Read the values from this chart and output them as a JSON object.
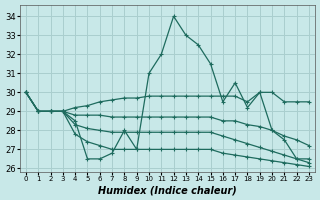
{
  "xlabel": "Humidex (Indice chaleur)",
  "x": [
    0,
    1,
    2,
    3,
    4,
    5,
    6,
    7,
    8,
    9,
    10,
    11,
    12,
    13,
    14,
    15,
    16,
    17,
    18,
    19,
    20,
    21,
    22,
    23
  ],
  "series": [
    [
      30,
      29,
      29,
      29,
      28.5,
      26.5,
      26.5,
      26.8,
      28.0,
      27.0,
      31,
      32,
      34,
      33,
      32.5,
      31.5,
      29.5,
      30.5,
      29.2,
      30,
      28,
      27.5,
      26.5,
      26.5
    ],
    [
      30,
      29,
      29,
      29,
      29.2,
      29.3,
      29.5,
      29.6,
      29.7,
      29.7,
      29.8,
      29.8,
      29.8,
      29.8,
      29.8,
      29.8,
      29.8,
      29.8,
      29.5,
      30.0,
      30.0,
      29.5,
      29.5,
      29.5
    ],
    [
      30,
      29,
      29,
      29,
      28.8,
      28.8,
      28.8,
      28.7,
      28.7,
      28.7,
      28.7,
      28.7,
      28.7,
      28.7,
      28.7,
      28.7,
      28.5,
      28.5,
      28.3,
      28.2,
      28.0,
      27.7,
      27.5,
      27.2
    ],
    [
      30,
      29,
      29,
      29,
      28.3,
      28.1,
      28.0,
      27.9,
      27.9,
      27.9,
      27.9,
      27.9,
      27.9,
      27.9,
      27.9,
      27.9,
      27.7,
      27.5,
      27.3,
      27.1,
      26.9,
      26.7,
      26.5,
      26.3
    ],
    [
      30,
      29,
      29,
      29,
      27.8,
      27.4,
      27.2,
      27.0,
      27.0,
      27.0,
      27.0,
      27.0,
      27.0,
      27.0,
      27.0,
      27.0,
      26.8,
      26.7,
      26.6,
      26.5,
      26.4,
      26.3,
      26.2,
      26.1
    ]
  ],
  "line_color": "#1e6b5e",
  "bg_color": "#c8e8e8",
  "grid_color": "#aacece",
  "ylim": [
    25.8,
    34.6
  ],
  "yticks": [
    26,
    27,
    28,
    29,
    30,
    31,
    32,
    33,
    34
  ],
  "xticks": [
    0,
    1,
    2,
    3,
    4,
    5,
    6,
    7,
    8,
    9,
    10,
    11,
    12,
    13,
    14,
    15,
    16,
    17,
    18,
    19,
    20,
    21,
    22,
    23
  ],
  "marker": "+",
  "marker_size": 3.5,
  "linewidth": 0.9
}
